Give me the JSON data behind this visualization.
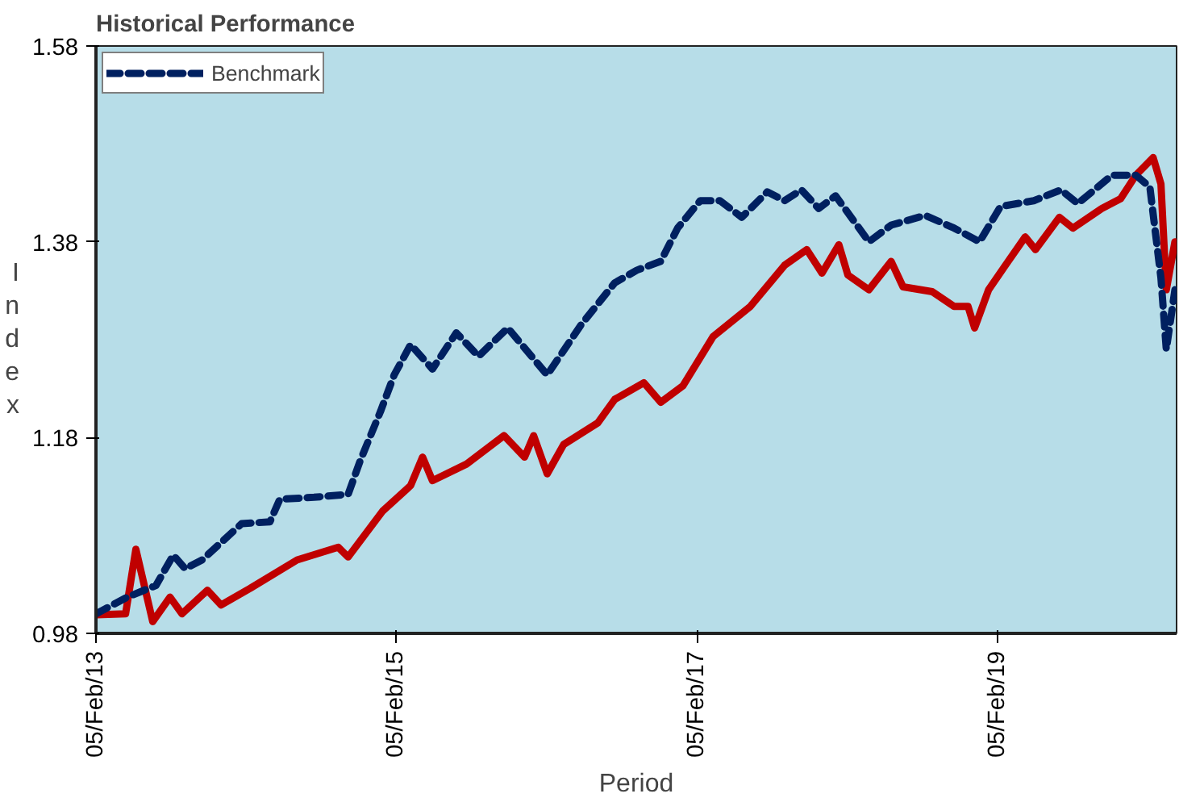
{
  "chart_data": {
    "type": "line",
    "title": "Historical Performance",
    "xlabel": "Period",
    "ylabel": "Index",
    "xlim": [
      "2013-02-05",
      "2020-04-16"
    ],
    "xticks": [
      {
        "value": "2013-02-05",
        "label": "05/Feb/13"
      },
      {
        "value": "2015-02-05",
        "label": "05/Feb/15"
      },
      {
        "value": "2017-02-05",
        "label": "05/Feb/17"
      },
      {
        "value": "2019-02-05",
        "label": "05/Feb/19"
      }
    ],
    "ylim": [
      0.98,
      1.58
    ],
    "yticks": [
      0.98,
      1.18,
      1.38,
      1.58
    ],
    "grid": false,
    "legend": "top left",
    "marker": "none",
    "series": [
      {
        "color": "#c00000",
        "line_style": "solid",
        "x": [
          "2013-02-05",
          "2013-04-18",
          "2013-05-13",
          "2013-06-23",
          "2013-08-04",
          "2013-09-02",
          "2013-11-03",
          "2013-12-06",
          "2014-02-15",
          "2014-06-09",
          "2014-09-17",
          "2014-10-11",
          "2015-01-03",
          "2015-03-12",
          "2015-04-10",
          "2015-05-04",
          "2015-07-26",
          "2015-10-25",
          "2015-12-14",
          "2016-01-05",
          "2016-02-07",
          "2016-03-18",
          "2016-06-09",
          "2016-07-20",
          "2016-09-29",
          "2016-11-09",
          "2017-01-02",
          "2017-03-16",
          "2017-06-15",
          "2017-09-06",
          "2017-10-30",
          "2017-12-06",
          "2018-01-16",
          "2018-02-07",
          "2018-03-30",
          "2018-05-23",
          "2018-06-21",
          "2018-08-31",
          "2018-10-23",
          "2018-11-26",
          "2018-12-12",
          "2019-01-15",
          "2019-02-25",
          "2019-04-14",
          "2019-05-09",
          "2019-07-06",
          "2019-08-08",
          "2019-10-17",
          "2019-12-02",
          "2020-01-08",
          "2020-02-19",
          "2020-03-09",
          "2020-03-22",
          "2020-04-12"
        ],
        "values": [
          0.999,
          1.0,
          1.066,
          0.992,
          1.017,
          1.0,
          1.024,
          1.009,
          1.026,
          1.055,
          1.068,
          1.058,
          1.105,
          1.131,
          1.16,
          1.136,
          1.153,
          1.182,
          1.16,
          1.182,
          1.143,
          1.173,
          1.195,
          1.219,
          1.236,
          1.216,
          1.233,
          1.283,
          1.314,
          1.356,
          1.372,
          1.348,
          1.377,
          1.346,
          1.331,
          1.36,
          1.334,
          1.329,
          1.314,
          1.314,
          1.292,
          1.331,
          1.356,
          1.385,
          1.372,
          1.405,
          1.394,
          1.414,
          1.424,
          1.448,
          1.466,
          1.439,
          1.331,
          1.38
        ]
      },
      {
        "name": "Benchmark",
        "color": "#002060",
        "line_style": "dashed",
        "x": [
          "2013-02-05",
          "2013-04-22",
          "2013-07-01",
          "2013-08-12",
          "2013-09-10",
          "2013-10-21",
          "2014-01-25",
          "2014-04-04",
          "2014-04-28",
          "2014-07-20",
          "2014-10-11",
          "2014-11-09",
          "2014-12-29",
          "2015-01-31",
          "2015-03-12",
          "2015-05-04",
          "2015-07-01",
          "2015-08-24",
          "2015-11-03",
          "2016-02-07",
          "2016-04-29",
          "2016-07-20",
          "2016-09-12",
          "2016-11-09",
          "2016-12-20",
          "2017-02-13",
          "2017-04-02",
          "2017-05-25",
          "2017-07-26",
          "2017-09-06",
          "2017-10-17",
          "2017-11-28",
          "2018-01-08",
          "2018-03-30",
          "2018-05-23",
          "2018-08-14",
          "2018-10-23",
          "2018-12-24",
          "2019-02-13",
          "2019-05-05",
          "2019-07-10",
          "2019-08-20",
          "2019-11-11",
          "2020-01-08",
          "2020-02-11",
          "2020-03-09",
          "2020-03-22",
          "2020-04-12"
        ],
        "values": [
          1.0,
          1.017,
          1.029,
          1.06,
          1.046,
          1.055,
          1.092,
          1.094,
          1.117,
          1.119,
          1.122,
          1.156,
          1.207,
          1.244,
          1.275,
          1.25,
          1.287,
          1.263,
          1.292,
          1.244,
          1.295,
          1.338,
          1.351,
          1.36,
          1.394,
          1.422,
          1.422,
          1.405,
          1.431,
          1.422,
          1.433,
          1.414,
          1.427,
          1.38,
          1.397,
          1.407,
          1.394,
          1.38,
          1.416,
          1.422,
          1.433,
          1.419,
          1.448,
          1.448,
          1.436,
          1.343,
          1.27,
          1.331
        ]
      }
    ]
  }
}
